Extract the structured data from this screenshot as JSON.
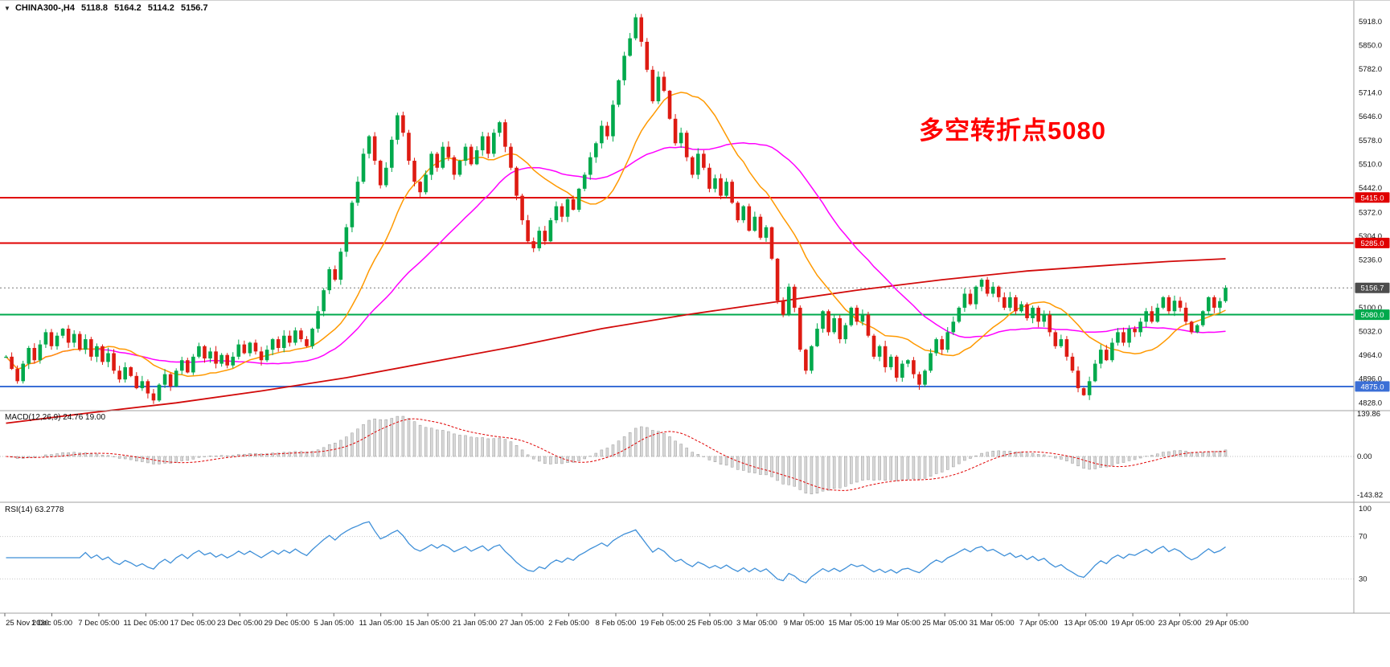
{
  "header": {
    "expander_icon": "▼",
    "symbol": "CHINA300-,H4",
    "open": "5118.8",
    "high": "5164.2",
    "low": "5114.2",
    "close": "5156.7"
  },
  "annotation": {
    "text": "多空转折点5080",
    "color": "#FF0000"
  },
  "indicators": {
    "macd": {
      "label": "MACD(12,26,9) 24.76 19.00",
      "axis": [
        "139.86",
        "0.00",
        "-143.82"
      ]
    },
    "rsi": {
      "label": "RSI(14) 63.2778",
      "axis": [
        "100",
        "70",
        "30"
      ]
    }
  },
  "price_axis": {
    "labels": [
      "5918.0",
      "5850.0",
      "5782.0",
      "5714.0",
      "5646.0",
      "5578.0",
      "5510.0",
      "5442.0",
      "5372.0",
      "5304.0",
      "5236.0",
      "5100.0",
      "5032.0",
      "4964.0",
      "4896.0",
      "4828.0"
    ],
    "badges": [
      {
        "text": "5415.0",
        "price": 5415.0,
        "bg": "#E00000",
        "fg": "#FFFFFF",
        "name": "resistance-1"
      },
      {
        "text": "5285.0",
        "price": 5285.0,
        "bg": "#E00000",
        "fg": "#FFFFFF",
        "name": "resistance-2"
      },
      {
        "text": "5156.7",
        "price": 5156.7,
        "bg": "#4D4D4D",
        "fg": "#FFFFFF",
        "name": "current-price"
      },
      {
        "text": "5080.0",
        "price": 5080.0,
        "bg": "#00A94C",
        "fg": "#FFFFFF",
        "name": "pivot-5080"
      },
      {
        "text": "4875.0",
        "price": 4875.0,
        "bg": "#3B6FD6",
        "fg": "#FFFFFF",
        "name": "support-4875"
      }
    ]
  },
  "time_axis": {
    "labels": [
      "25 Nov 2020",
      "1 Dec 05:00",
      "7 Dec 05:00",
      "11 Dec 05:00",
      "17 Dec 05:00",
      "23 Dec 05:00",
      "29 Dec 05:00",
      "5 Jan 05:00",
      "11 Jan 05:00",
      "15 Jan 05:00",
      "21 Jan 05:00",
      "27 Jan 05:00",
      "2 Feb 05:00",
      "8 Feb 05:00",
      "19 Feb 05:00",
      "25 Feb 05:00",
      "3 Mar 05:00",
      "9 Mar 05:00",
      "15 Mar 05:00",
      "19 Mar 05:00",
      "25 Mar 05:00",
      "31 Mar 05:00",
      "7 Apr 05:00",
      "13 Apr 05:00",
      "19 Apr 05:00",
      "23 Apr 05:00",
      "29 Apr 05:00"
    ]
  },
  "chart_data": {
    "type": "candlestick",
    "symbol": "CHINA300-",
    "timeframe": "H4",
    "title": "CHINA300- H4 candlestick chart with MACD(12,26,9) and RSI(14)",
    "x_range": [
      "25 Nov 2020",
      "29 Apr 2021"
    ],
    "price_axis_range": [
      4828,
      5918
    ],
    "closes": [
      4960,
      4925,
      4890,
      4940,
      4985,
      4950,
      4995,
      5030,
      4990,
      5020,
      5040,
      5000,
      5025,
      4980,
      5010,
      4960,
      4990,
      4945,
      4970,
      4920,
      4895,
      4930,
      4905,
      4870,
      4890,
      4855,
      4835,
      4880,
      4910,
      4875,
      4920,
      4950,
      4915,
      4960,
      4990,
      4955,
      4975,
      4940,
      4965,
      4935,
      4960,
      4995,
      4970,
      5000,
      4975,
      4950,
      4980,
      5010,
      4985,
      5020,
      5000,
      5035,
      5010,
      4990,
      5040,
      5090,
      5150,
      5210,
      5180,
      5260,
      5330,
      5400,
      5460,
      5540,
      5590,
      5520,
      5450,
      5500,
      5580,
      5650,
      5600,
      5520,
      5460,
      5430,
      5480,
      5540,
      5500,
      5560,
      5530,
      5480,
      5520,
      5560,
      5510,
      5550,
      5590,
      5540,
      5600,
      5630,
      5560,
      5500,
      5420,
      5350,
      5290,
      5270,
      5320,
      5290,
      5350,
      5390,
      5360,
      5410,
      5380,
      5440,
      5480,
      5530,
      5570,
      5620,
      5590,
      5680,
      5750,
      5820,
      5870,
      5930,
      5860,
      5780,
      5690,
      5760,
      5720,
      5640,
      5570,
      5600,
      5530,
      5480,
      5540,
      5500,
      5440,
      5470,
      5420,
      5460,
      5400,
      5350,
      5390,
      5320,
      5360,
      5300,
      5330,
      5240,
      5120,
      5080,
      5160,
      5100,
      4980,
      4920,
      4990,
      5040,
      5090,
      5030,
      5070,
      5010,
      5050,
      5100,
      5060,
      5080,
      5020,
      4960,
      4990,
      4930,
      4960,
      4900,
      4940,
      4950,
      4910,
      4880,
      4920,
      4970,
      5010,
      4980,
      5030,
      5060,
      5100,
      5140,
      5110,
      5160,
      5180,
      5140,
      5160,
      5130,
      5100,
      5130,
      5090,
      5110,
      5070,
      5100,
      5060,
      5080,
      5030,
      4990,
      5010,
      4960,
      4920,
      4870,
      4850,
      4890,
      4940,
      4980,
      4950,
      5000,
      5030,
      5000,
      5040,
      5030,
      5060,
      5090,
      5060,
      5100,
      5130,
      5090,
      5120,
      5100,
      5060,
      5030,
      5050,
      5090,
      5130,
      5100,
      5118.8,
      5156.7
    ],
    "last_ohlc": {
      "open": 5118.8,
      "high": 5164.2,
      "low": 5114.2,
      "close": 5156.7
    },
    "moving_averages": [
      {
        "name": "fast-ma",
        "type": "sma",
        "period": 16,
        "color": "#FF9900"
      },
      {
        "name": "mid-ma",
        "type": "sma",
        "period": 34,
        "color": "#FF00FF"
      }
    ],
    "slow_ma": {
      "name": "slow-ma",
      "color": "#D20A0A",
      "points": [
        [
          0,
          4770
        ],
        [
          15,
          4800
        ],
        [
          30,
          4828
        ],
        [
          45,
          4862
        ],
        [
          60,
          4900
        ],
        [
          75,
          4945
        ],
        [
          90,
          4990
        ],
        [
          105,
          5040
        ],
        [
          120,
          5080
        ],
        [
          135,
          5115
        ],
        [
          150,
          5150
        ],
        [
          165,
          5180
        ],
        [
          180,
          5205
        ],
        [
          195,
          5222
        ],
        [
          205,
          5232
        ],
        [
          215,
          5240
        ]
      ]
    },
    "horizontal_lines": [
      {
        "price": 5415,
        "color": "#E00000",
        "width": 2
      },
      {
        "price": 5285,
        "color": "#E00000",
        "width": 2
      },
      {
        "price": 5080,
        "color": "#00A94C",
        "width": 2
      },
      {
        "price": 4875,
        "color": "#3B6FD6",
        "width": 2
      }
    ],
    "current_price": 5156.7,
    "up_color": "#00A94C",
    "down_color": "#DE1B12",
    "macd": {
      "fast": 12,
      "slow": 26,
      "signal": 9,
      "current_values": [
        24.76,
        19.0
      ],
      "axis_range": [
        -143.82,
        139.86
      ],
      "histogram_fill": "#D8D8D8",
      "histogram_outline": "#9A9A9A",
      "signal_color": "#E00000"
    },
    "rsi": {
      "period": 14,
      "current": 63.2778,
      "color": "#3E8FD8",
      "levels": [
        70,
        30
      ]
    }
  }
}
